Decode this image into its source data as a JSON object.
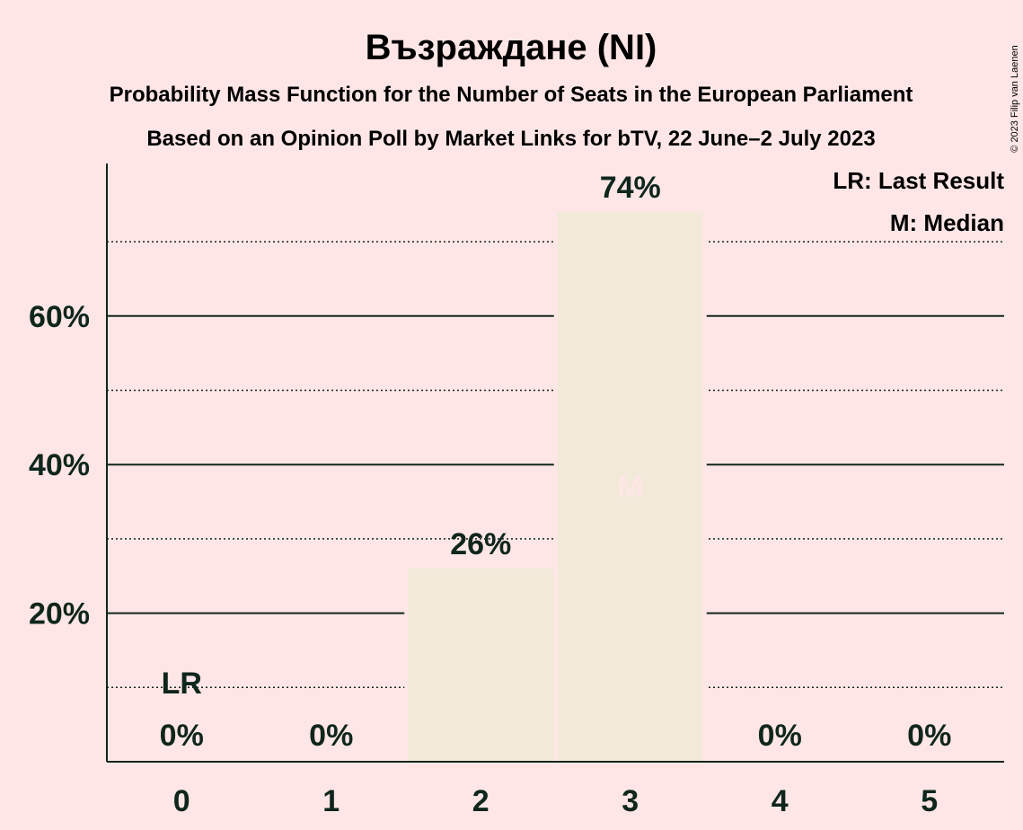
{
  "title": "Възраждане (NI)",
  "subtitle1": "Probability Mass Function for the Number of Seats in the European Parliament",
  "subtitle2": "Based on an Opinion Poll by Market Links for bTV, 22 June–2 July 2023",
  "copyright": "© 2023 Filip van Laenen",
  "legend": {
    "last_result": "LR: Last Result",
    "median": "M: Median"
  },
  "colors": {
    "background": "#FFE6E6",
    "bar": "#F2E9D9",
    "text": "#0F261C"
  },
  "chart_data": {
    "type": "bar",
    "categories": [
      "0",
      "1",
      "2",
      "3",
      "4",
      "5"
    ],
    "values": [
      0,
      0,
      26,
      74,
      0,
      0
    ],
    "labels": [
      "0%",
      "0%",
      "26%",
      "74%",
      "0%",
      "0%"
    ],
    "ylim": [
      0,
      80
    ],
    "yticks": [
      20,
      40,
      60
    ],
    "ytick_labels": [
      "20%",
      "40%",
      "60%"
    ],
    "minor_gridlines": [
      10,
      30,
      50,
      70
    ],
    "last_result_category": "0",
    "last_result_marker": "LR",
    "median_category": "3",
    "median_marker": "M",
    "legend_position": "top-right"
  }
}
